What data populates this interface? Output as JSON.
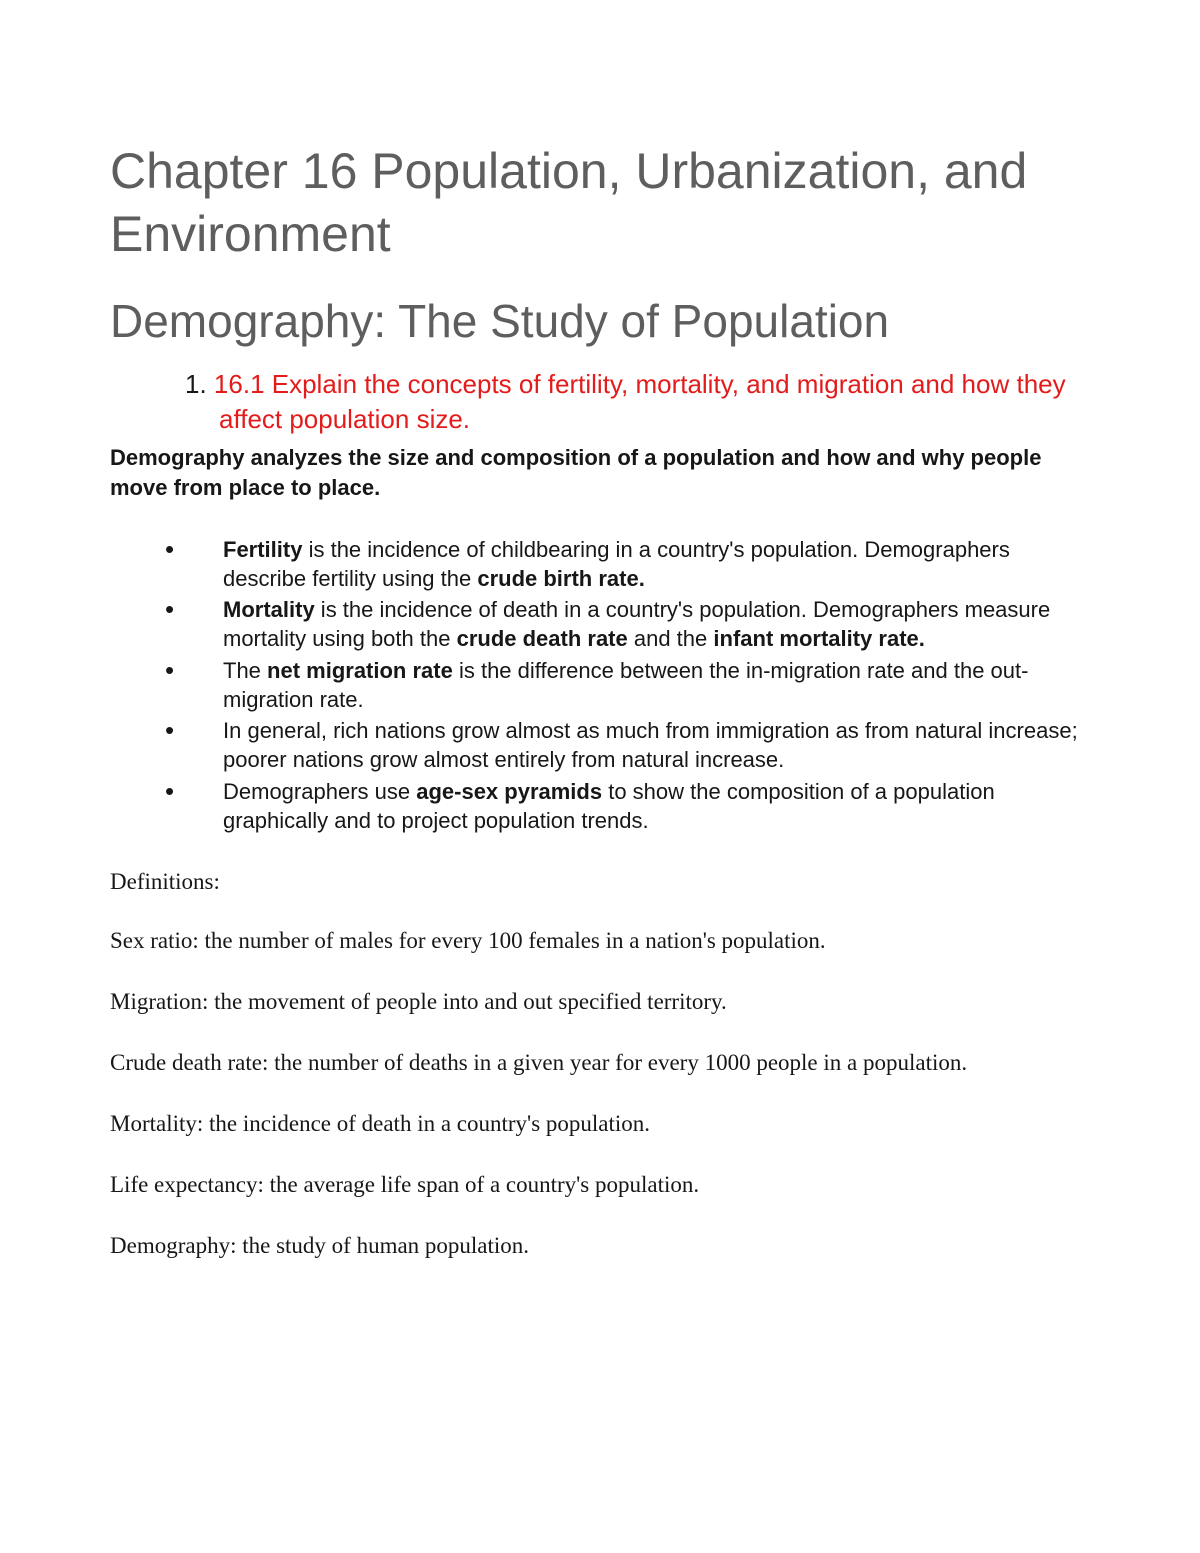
{
  "colors": {
    "heading": "#5e5e5e",
    "body": "#171717",
    "accent": "#e31b1b",
    "background": "#ffffff"
  },
  "typography": {
    "title_fontsize": 50,
    "subtitle_fontsize": 46,
    "objective_fontsize": 26,
    "body_fontsize": 22,
    "serif_fontsize": 23,
    "sans_family": "Verdana",
    "serif_family": "Georgia"
  },
  "title": "Chapter 16 Population, Urbanization, and Environment",
  "subtitle": "Demography: The Study of Population",
  "objective": {
    "number": "1. ",
    "text": "16.1 Explain the concepts of fertility, mortality, and migration and how they affect population size."
  },
  "intro": "Demography analyzes the size and composition of a population and how and why people move from place to place.",
  "bullets": [
    {
      "pre": "",
      "b1": "Fertility",
      "mid1": " is the incidence of childbearing in a country's population. Demographers describe fertility using the ",
      "b2": "crude birth rate.",
      "mid2": "",
      "b3": "",
      "post": ""
    },
    {
      "pre": "",
      "b1": "Mortality",
      "mid1": " is the incidence of death in a country's population. Demographers measure mortality using both the ",
      "b2": "crude death rate",
      "mid2": " and the ",
      "b3": "infant mortality rate.",
      "post": ""
    },
    {
      "pre": "The ",
      "b1": "net migration rate",
      "mid1": " is the difference between the in-migration rate and the out-migration rate.",
      "b2": "",
      "mid2": "",
      "b3": "",
      "post": ""
    },
    {
      "pre": "In general, rich nations grow almost as much from immigration as from natural increase; poorer nations grow almost entirely from natural increase.",
      "b1": "",
      "mid1": "",
      "b2": "",
      "mid2": "",
      "b3": "",
      "post": ""
    },
    {
      "pre": "Demographers use ",
      "b1": "age-sex pyramids",
      "mid1": " to show the composition of a population graphically and to project population trends.",
      "b2": "",
      "mid2": "",
      "b3": "",
      "post": ""
    }
  ],
  "defs_heading": "Definitions:",
  "definitions": [
    "Sex ratio: the number of males for every 100 females in a nation's population.",
    "Migration: the movement of people into and out specified territory.",
    "Crude death rate: the number of deaths in a given year for every 1000 people in a population.",
    "Mortality: the incidence of death in a country's population.",
    "Life expectancy: the average life span of a country's population.",
    "Demography: the study of human population."
  ]
}
